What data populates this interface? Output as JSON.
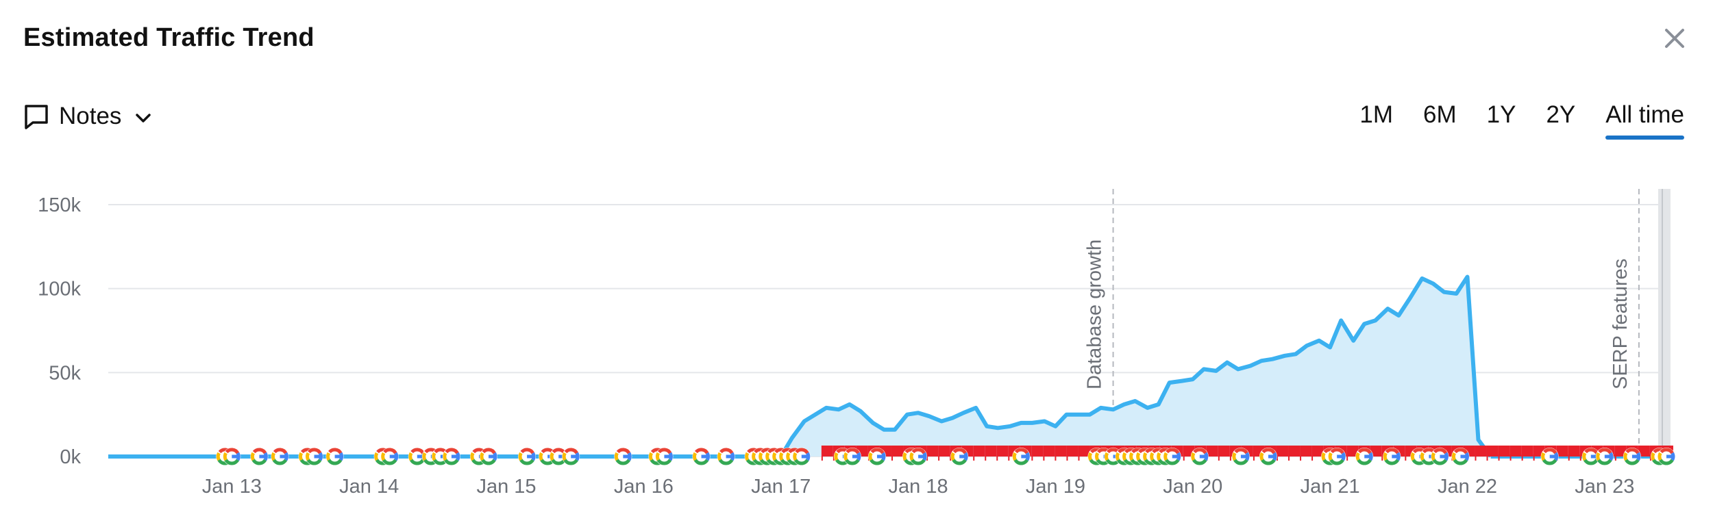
{
  "header": {
    "title": "Estimated Traffic Trend"
  },
  "toolbar": {
    "notes_label": "Notes",
    "ranges": [
      "1M",
      "6M",
      "1Y",
      "2Y",
      "All time"
    ],
    "active_range": "All time"
  },
  "colors": {
    "line": "#3cb1f0",
    "area": "#d5edfa",
    "grid": "#e4e6ea",
    "accent": "#1a73c7",
    "flag": "#e8202a"
  },
  "chart_data": {
    "type": "area",
    "title": "",
    "xlabel": "",
    "ylabel": "",
    "ylim": [
      0,
      150000
    ],
    "y_ticks": [
      {
        "value": 0,
        "label": "0k"
      },
      {
        "value": 50000,
        "label": "50k"
      },
      {
        "value": 100000,
        "label": "100k"
      },
      {
        "value": 150000,
        "label": "150k"
      }
    ],
    "xlim": [
      12.1,
      23.48
    ],
    "x_ticks": [
      {
        "value": 13,
        "label": "Jan 13"
      },
      {
        "value": 14,
        "label": "Jan 14"
      },
      {
        "value": 15,
        "label": "Jan 15"
      },
      {
        "value": 16,
        "label": "Jan 16"
      },
      {
        "value": 17,
        "label": "Jan 17"
      },
      {
        "value": 18,
        "label": "Jan 18"
      },
      {
        "value": 19,
        "label": "Jan 19"
      },
      {
        "value": 20,
        "label": "Jan 20"
      },
      {
        "value": 21,
        "label": "Jan 21"
      },
      {
        "value": 22,
        "label": "Jan 22"
      },
      {
        "value": 23,
        "label": "Jan 23"
      }
    ],
    "grid": true,
    "series": [
      {
        "x": [
          12.1,
          17.0,
          17.08,
          17.17,
          17.33,
          17.42,
          17.5,
          17.58,
          17.67,
          17.75,
          17.83,
          17.92,
          18.0,
          18.08,
          18.17,
          18.25,
          18.33,
          18.42,
          18.5,
          18.58,
          18.67,
          18.75,
          18.83,
          18.92,
          19.0,
          19.08,
          19.17,
          19.25,
          19.33,
          19.42,
          19.5,
          19.58,
          19.67,
          19.75,
          19.83,
          19.92,
          20.0,
          20.08,
          20.17,
          20.25,
          20.33,
          20.42,
          20.5,
          20.58,
          20.67,
          20.75,
          20.83,
          20.92,
          21.0,
          21.08,
          21.17,
          21.25,
          21.33,
          21.42,
          21.5,
          21.58,
          21.67,
          21.75,
          21.83,
          21.92,
          22.0,
          22.08,
          22.17
        ],
        "y": [
          0,
          0,
          11000,
          21000,
          29000,
          28000,
          31000,
          27000,
          20000,
          16000,
          16000,
          25000,
          26000,
          24000,
          21000,
          23000,
          26000,
          29000,
          18000,
          17000,
          18000,
          20000,
          20000,
          21000,
          18000,
          25000,
          25000,
          25000,
          29000,
          28000,
          31000,
          33000,
          29000,
          31000,
          44000,
          45000,
          46000,
          52000,
          51000,
          56000,
          52000,
          54000,
          57000,
          58000,
          60000,
          61000,
          66000,
          69000,
          65000,
          81000,
          69000,
          79000,
          81000,
          88000,
          84000,
          94000,
          106000,
          103000,
          98000,
          97000,
          107000,
          10000,
          0
        ]
      }
    ],
    "annotations": [
      {
        "label": "Database growth",
        "x": 19.42
      },
      {
        "label": "SERP features",
        "x": 23.25
      }
    ],
    "note_markers": {
      "google_update": [
        12.95,
        13.0,
        13.2,
        13.35,
        13.55,
        13.6,
        13.75,
        14.1,
        14.15,
        14.35,
        14.45,
        14.52,
        14.6,
        14.8,
        14.87,
        15.15,
        15.3,
        15.38,
        15.47,
        15.85,
        16.1,
        16.15,
        16.42,
        16.6,
        16.8,
        16.85,
        16.9,
        16.95,
        17.0,
        17.05,
        17.1,
        17.15,
        17.45,
        17.52,
        17.7,
        17.95,
        18.0,
        18.3,
        18.75,
        19.3,
        19.35,
        19.42,
        19.5,
        19.55,
        19.6,
        19.65,
        19.7,
        19.75,
        19.8,
        19.85,
        20.05,
        20.35,
        20.55,
        21.0,
        21.05,
        21.25,
        21.45,
        21.65,
        21.72,
        21.8,
        21.95,
        22.6,
        22.9,
        23.0,
        23.2,
        23.4,
        23.45
      ]
    }
  }
}
